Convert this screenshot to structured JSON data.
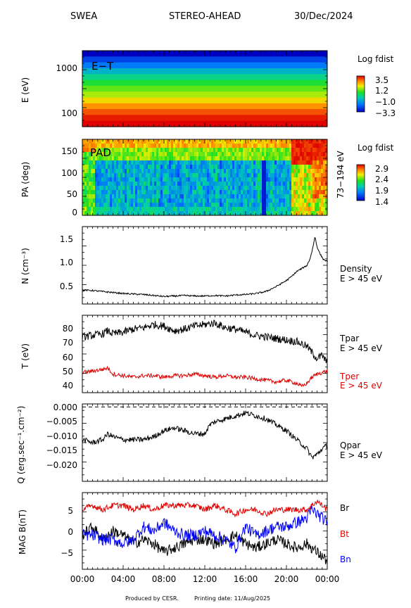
{
  "header": {
    "instrument": "SWEA",
    "spacecraft": "STEREO-AHEAD",
    "date": "30/Dec/2024"
  },
  "footer": {
    "produced_by": "Produced by CESR.",
    "printing_date": "Printing date: 11/Aug/2025"
  },
  "colors": {
    "black": "#000000",
    "red": "#e00000",
    "blue": "#0000ff"
  },
  "chart_data": [
    {
      "type": "heatmap",
      "id": "energy-time",
      "label": "E−T",
      "ylabel": "E (eV)",
      "yscale": "log",
      "ylim": [
        50,
        2200
      ],
      "yticks": [
        100,
        1000
      ],
      "colorbar": {
        "title": "Log fdist",
        "ticks": [
          "3.5",
          "1.2",
          "−1.0",
          "−3.3"
        ],
        "range": [
          -3.3,
          3.5
        ]
      },
      "rows_high_to_low": [
        -3.3,
        -2.5,
        -1.8,
        -1.0,
        -0.3,
        0.3,
        0.8,
        1.2,
        1.8,
        2.4,
        2.9,
        3.3,
        3.5
      ]
    },
    {
      "type": "heatmap",
      "id": "pitch-angle",
      "label": "PAD",
      "ylabel": "PA (deg)",
      "ylim": [
        0,
        180
      ],
      "yticks": [
        0,
        50,
        100,
        150
      ],
      "right_label": "73−194 eV",
      "colorbar": {
        "title": "Log fdist",
        "ticks": [
          "2.9",
          "2.4",
          "1.9",
          "1.4"
        ],
        "range": [
          1.4,
          2.9
        ]
      }
    },
    {
      "type": "line",
      "id": "density",
      "ylabel": "N (cm⁻³)",
      "ylim": [
        0.15,
        1.7
      ],
      "yticks": [
        "0.5",
        "1.0",
        "1.5"
      ],
      "series": [
        {
          "name": "Density",
          "subname": "E > 45 eV",
          "color": "#000000",
          "x": [
            0,
            1,
            2,
            3,
            4,
            5,
            6,
            7,
            8,
            9,
            10,
            11,
            12,
            13,
            14,
            15,
            16,
            17,
            18,
            19,
            20,
            20.5,
            21,
            21.5,
            22,
            22.3,
            22.5,
            22.8,
            23,
            23.3,
            23.6,
            24
          ],
          "values": [
            0.43,
            0.42,
            0.4,
            0.38,
            0.36,
            0.35,
            0.34,
            0.32,
            0.3,
            0.31,
            0.32,
            0.31,
            0.31,
            0.32,
            0.31,
            0.33,
            0.34,
            0.36,
            0.4,
            0.5,
            0.62,
            0.7,
            0.8,
            0.86,
            0.92,
            1.05,
            1.2,
            1.5,
            1.3,
            1.15,
            1.05,
            1.0
          ]
        }
      ]
    },
    {
      "type": "line",
      "id": "temperature",
      "ylabel": "T (eV)",
      "ylim": [
        36,
        86
      ],
      "yticks": [
        "40",
        "50",
        "60",
        "70",
        "80"
      ],
      "series": [
        {
          "name": "Tpar",
          "subname": "E > 45 eV",
          "color": "#000000",
          "x": [
            0,
            1,
            2,
            2.5,
            3,
            4,
            5,
            6,
            7,
            8,
            9,
            10,
            11,
            12,
            13,
            14,
            15,
            16,
            17,
            18,
            19,
            20,
            21,
            22,
            22.5,
            23,
            23.5,
            24
          ],
          "values": [
            72,
            73,
            74,
            76,
            74,
            75,
            77,
            78,
            80,
            79,
            76,
            77,
            79,
            80,
            81,
            78,
            77,
            75,
            73,
            72,
            71,
            70,
            69,
            66,
            62,
            58,
            60,
            55
          ]
        },
        {
          "name": "Tper",
          "subname": "E > 45 eV",
          "color": "#e00000",
          "x": [
            0,
            1,
            2,
            2.5,
            3,
            4,
            5,
            6,
            7,
            8,
            9,
            10,
            11,
            12,
            13,
            14,
            15,
            16,
            17,
            18,
            19,
            20,
            21,
            21.5,
            22,
            22.5,
            23,
            23.5,
            24
          ],
          "values": [
            49,
            50,
            51,
            52,
            48,
            47,
            46,
            47,
            47,
            46,
            47,
            47,
            48,
            47,
            46,
            47,
            46,
            46,
            45,
            44,
            43,
            44,
            42,
            40,
            42,
            46,
            48,
            49,
            50
          ]
        }
      ]
    },
    {
      "type": "line",
      "id": "heat-flux",
      "ylabel": "Q (erg.sec⁻¹.cm⁻²)",
      "ylim": [
        -0.025,
        0.001
      ],
      "yticks": [
        "0.000",
        "−0.005",
        "−0.010",
        "−0.015",
        "−0.020"
      ],
      "series": [
        {
          "name": "Qpar",
          "subname": "E > 45 eV",
          "color": "#000000",
          "x": [
            0,
            1,
            2,
            2.5,
            3,
            4,
            5,
            6,
            7,
            8,
            9,
            10,
            11,
            12,
            12.5,
            13,
            14,
            15,
            16,
            17,
            18,
            19,
            20,
            21,
            22,
            22.5,
            23,
            23.5,
            24
          ],
          "values": [
            -0.011,
            -0.012,
            -0.011,
            -0.009,
            -0.01,
            -0.011,
            -0.011,
            -0.011,
            -0.01,
            -0.008,
            -0.007,
            -0.008,
            -0.009,
            -0.009,
            -0.006,
            -0.005,
            -0.004,
            -0.003,
            -0.002,
            -0.003,
            -0.004,
            -0.006,
            -0.008,
            -0.011,
            -0.014,
            -0.017,
            -0.016,
            -0.014,
            -0.013
          ]
        }
      ]
    },
    {
      "type": "line",
      "id": "magnetic-field",
      "ylabel": "MAG B(nT)",
      "ylim": [
        -9,
        9
      ],
      "yticks": [
        "−5",
        "0",
        "5"
      ],
      "xlabels": [
        "00:00",
        "04:00",
        "08:00",
        "12:00",
        "16:00",
        "20:00",
        "00:00"
      ],
      "xlim": [
        0,
        24
      ],
      "series": [
        {
          "name": "Br",
          "color": "#000000",
          "x": [
            0,
            1,
            2,
            3,
            4,
            5,
            6,
            7,
            8,
            9,
            10,
            11,
            12,
            13,
            14,
            15,
            16,
            17,
            18,
            19,
            20,
            21,
            22,
            22.5,
            23,
            23.5,
            24
          ],
          "values": [
            -1,
            1,
            -2,
            0,
            -1,
            -3,
            -2,
            -3,
            -5,
            -4,
            -3,
            -2,
            -2,
            -3,
            -2,
            -1,
            -3,
            -4,
            -3,
            -2,
            -3,
            -4,
            -3,
            -4,
            -5,
            -6,
            -7
          ]
        },
        {
          "name": "Bt",
          "color": "#e00000",
          "x": [
            0,
            1,
            2,
            3,
            4,
            5,
            6,
            7,
            8,
            9,
            10,
            11,
            12,
            13,
            14,
            15,
            16,
            17,
            18,
            19,
            20,
            21,
            22,
            22.5,
            23,
            23.5,
            24
          ],
          "values": [
            5,
            6,
            5,
            6,
            6,
            5,
            6,
            5,
            6,
            6,
            6,
            6,
            5,
            6,
            5,
            4,
            5,
            5,
            4,
            5,
            5,
            5,
            5,
            6,
            7,
            6,
            5
          ]
        },
        {
          "name": "Bn",
          "color": "#0000ff",
          "x": [
            0,
            1,
            2,
            3,
            4,
            5,
            6,
            7,
            8,
            9,
            10,
            11,
            12,
            13,
            14,
            15,
            16,
            17,
            18,
            19,
            20,
            21,
            22,
            22.5,
            23,
            23.5,
            24
          ],
          "values": [
            -1,
            -1,
            -2,
            -2,
            -3,
            -2,
            1,
            0,
            2,
            0,
            -1,
            -1,
            0,
            -1,
            -2,
            -4,
            1,
            -1,
            0,
            1,
            1,
            2,
            3,
            5,
            4,
            3,
            2
          ]
        }
      ]
    }
  ]
}
